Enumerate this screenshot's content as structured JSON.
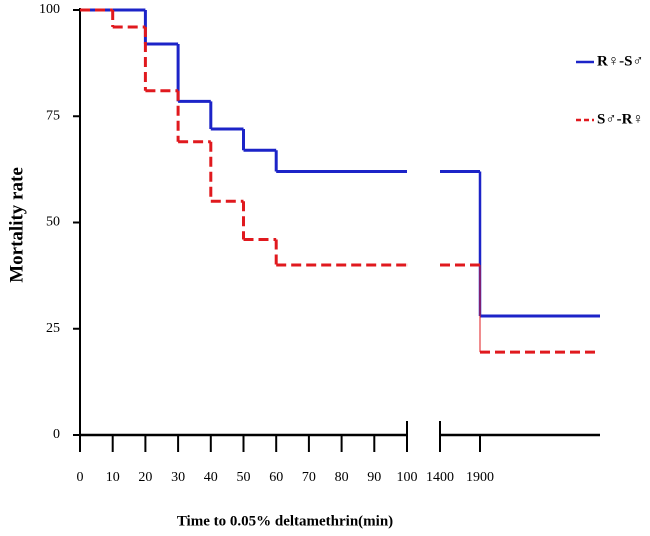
{
  "chart_data": {
    "type": "step",
    "x_label": "Time to 0.05% deltamethrin(min)",
    "y_label": "Mortality  rate",
    "x": [
      0,
      10,
      20,
      30,
      40,
      50,
      60,
      100,
      1400,
      1900,
      3400
    ],
    "series": [
      {
        "name": "R♀-S♂",
        "color": "#1c24c8",
        "dash": false,
        "values": [
          100,
          100,
          92,
          78.5,
          72,
          67,
          62,
          62,
          62,
          28,
          28
        ]
      },
      {
        "name": "S♂-R♀",
        "color": "#e0191e",
        "dash": true,
        "values": [
          100,
          96,
          81,
          69,
          55,
          46,
          40,
          40,
          40,
          19.5,
          19.5
        ]
      }
    ],
    "xlim": [
      0,
      100
    ],
    "x2lim": [
      1400,
      3400
    ],
    "xticks": [
      0,
      10,
      20,
      30,
      40,
      50,
      60,
      70,
      80,
      90,
      100
    ],
    "x2ticks": [
      1400,
      1900
    ],
    "ylim": [
      0,
      100
    ],
    "yticks": [
      0,
      25,
      50,
      75,
      100
    ],
    "legend": "top-right"
  }
}
